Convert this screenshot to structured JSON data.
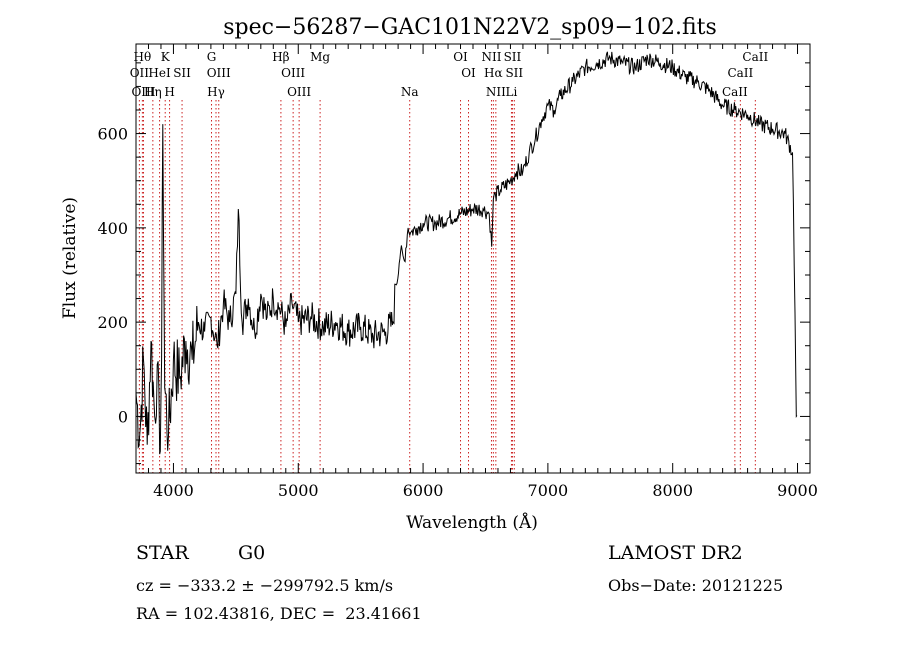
{
  "chart_data": {
    "type": "line",
    "title": "spec−56287−GAC101N22V2_sp09−102.fits",
    "xlabel": "Wavelength (Å)",
    "ylabel": "Flux (relative)",
    "xlim": [
      3700,
      9100
    ],
    "ylim": [
      -120,
      790
    ],
    "xticks": [
      4000,
      5000,
      6000,
      7000,
      8000,
      9000
    ],
    "yticks": [
      0,
      200,
      400,
      600
    ],
    "grid": false,
    "series": [
      {
        "color": "#000000",
        "x": [
          3700,
          3730,
          3760,
          3790,
          3820,
          3850,
          3870,
          3890,
          3905,
          3915,
          3930,
          3960,
          4000,
          4050,
          4100,
          4150,
          4200,
          4250,
          4300,
          4350,
          4400,
          4450,
          4500,
          4520,
          4550,
          4600,
          4650,
          4700,
          4750,
          4800,
          4850,
          4900,
          4950,
          5000,
          5100,
          5200,
          5300,
          5400,
          5500,
          5600,
          5700,
          5760,
          5780,
          5820,
          5850,
          5880,
          5900,
          5950,
          6000,
          6100,
          6200,
          6300,
          6400,
          6480,
          6530,
          6550,
          6563,
          6580,
          6620,
          6700,
          6750,
          6800,
          6850,
          6900,
          6950,
          7000,
          7050,
          7100,
          7200,
          7300,
          7400,
          7500,
          7600,
          7700,
          7800,
          7900,
          8000,
          8100,
          8200,
          8300,
          8400,
          8500,
          8600,
          8700,
          8800,
          8900,
          8960,
          8980,
          8990,
          8995
        ],
        "y": [
          50,
          -40,
          120,
          -60,
          160,
          0,
          110,
          -80,
          120,
          620,
          60,
          -40,
          120,
          80,
          160,
          120,
          200,
          180,
          210,
          150,
          240,
          200,
          260,
          440,
          200,
          250,
          180,
          260,
          210,
          250,
          230,
          190,
          240,
          200,
          210,
          190,
          200,
          180,
          190,
          170,
          180,
          200,
          280,
          350,
          330,
          400,
          390,
          400,
          410,
          410,
          420,
          430,
          440,
          440,
          430,
          360,
          460,
          470,
          480,
          500,
          520,
          520,
          560,
          590,
          630,
          660,
          650,
          680,
          710,
          740,
          750,
          760,
          750,
          740,
          760,
          750,
          740,
          720,
          710,
          690,
          660,
          650,
          640,
          620,
          610,
          600,
          560,
          220,
          0,
          2
        ]
      }
    ],
    "lines": [
      {
        "wl": 3751,
        "label": "Hθ",
        "row": 0
      },
      {
        "wl": 3727,
        "label": "OII",
        "row": 1
      },
      {
        "wl": 3760,
        "label": "OIII",
        "row": 2
      },
      {
        "wl": 3934,
        "label": "K",
        "row": 0
      },
      {
        "wl": 3889,
        "label": "HeI",
        "row": 1
      },
      {
        "wl": 4069,
        "label": "SII",
        "row": 1
      },
      {
        "wl": 3835,
        "label": "Hη",
        "row": 2
      },
      {
        "wl": 3969,
        "label": "H",
        "row": 2
      },
      {
        "wl": 4305,
        "label": "G",
        "row": 0
      },
      {
        "wl": 4363,
        "label": "OIII",
        "row": 1
      },
      {
        "wl": 4341,
        "label": "Hγ",
        "row": 2
      },
      {
        "wl": 4861,
        "label": "Hβ",
        "row": 0
      },
      {
        "wl": 4959,
        "label": "OIII",
        "row": 1
      },
      {
        "wl": 5007,
        "label": "OIII",
        "row": 2
      },
      {
        "wl": 5175,
        "label": "Mg",
        "row": 0
      },
      {
        "wl": 5893,
        "label": "Na",
        "row": 2
      },
      {
        "wl": 6300,
        "label": "OI",
        "row": 0
      },
      {
        "wl": 6364,
        "label": "OI",
        "row": 1
      },
      {
        "wl": 6548,
        "label": "NII",
        "row": 0
      },
      {
        "wl": 6563,
        "label": "Hα",
        "row": 1
      },
      {
        "wl": 6583,
        "label": "NII",
        "row": 2
      },
      {
        "wl": 6716,
        "label": "SII",
        "row": 0
      },
      {
        "wl": 6731,
        "label": "SII",
        "row": 1
      },
      {
        "wl": 6708,
        "label": "Li",
        "row": 2
      },
      {
        "wl": 8662,
        "label": "CaII",
        "row": 0
      },
      {
        "wl": 8542,
        "label": "CaII",
        "row": 1
      },
      {
        "wl": 8498,
        "label": "CaII",
        "row": 2
      }
    ]
  },
  "info": {
    "object_class": "STAR",
    "subclass": "G0",
    "survey": "LAMOST DR2",
    "cz": "cz = −333.2 ± −299792.5 km/s",
    "obs_date": "Obs−Date: 20121225",
    "coords": "RA = 102.43816, DEC =  23.41661"
  }
}
